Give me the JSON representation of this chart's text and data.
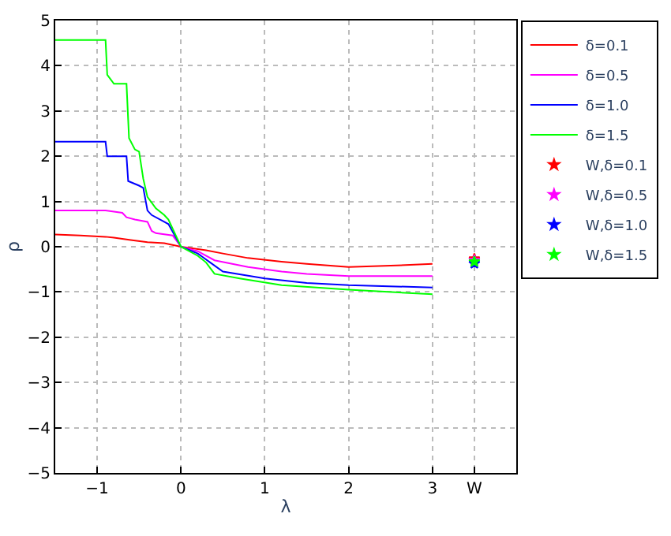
{
  "chart_data": {
    "type": "line",
    "xlabel": "λ",
    "ylabel": "ρ",
    "xlim": [
      -1.5,
      4
    ],
    "ylim": [
      -5,
      5
    ],
    "xticks": [
      -1,
      0,
      1,
      2,
      3,
      {
        "value": 3.5,
        "label": "W"
      }
    ],
    "yticks": [
      -5,
      -4,
      -3,
      -2,
      -1,
      0,
      1,
      2,
      3,
      4,
      5
    ],
    "grid": true,
    "legend": "top right",
    "line_style": "solid",
    "series": [
      {
        "name": "δ=0.1",
        "color": "#ff0000",
        "x": [
          -1.5,
          -1.2,
          -0.9,
          -0.8,
          -0.6,
          -0.4,
          -0.2,
          0,
          0.3,
          0.5,
          0.8,
          1.2,
          1.5,
          2,
          2.5,
          3
        ],
        "values": [
          0.27,
          0.25,
          0.22,
          0.2,
          0.15,
          0.1,
          0.08,
          0,
          -0.08,
          -0.15,
          -0.25,
          -0.33,
          -0.38,
          -0.45,
          -0.42,
          -0.38
        ]
      },
      {
        "name": "δ=0.5",
        "color": "#ff00ff",
        "x": [
          -1.5,
          -0.9,
          -0.7,
          -0.65,
          -0.55,
          -0.4,
          -0.35,
          -0.3,
          -0.1,
          0,
          0.2,
          0.4,
          0.8,
          1.2,
          1.5,
          2,
          3
        ],
        "values": [
          0.8,
          0.8,
          0.75,
          0.65,
          0.6,
          0.55,
          0.35,
          0.3,
          0.25,
          0,
          -0.1,
          -0.3,
          -0.45,
          -0.55,
          -0.6,
          -0.65,
          -0.65
        ]
      },
      {
        "name": "δ=1.0",
        "color": "#0000ff",
        "x": [
          -1.5,
          -0.9,
          -0.88,
          -0.65,
          -0.63,
          -0.5,
          -0.45,
          -0.4,
          -0.35,
          -0.2,
          -0.15,
          0,
          0.2,
          0.35,
          0.5,
          1,
          1.5,
          2,
          3
        ],
        "values": [
          2.32,
          2.32,
          2.0,
          2.0,
          1.45,
          1.35,
          1.3,
          0.8,
          0.7,
          0.55,
          0.5,
          0,
          -0.15,
          -0.35,
          -0.55,
          -0.7,
          -0.8,
          -0.85,
          -0.9
        ]
      },
      {
        "name": "δ=1.5",
        "color": "#00ff00",
        "x": [
          -1.5,
          -0.9,
          -0.88,
          -0.8,
          -0.65,
          -0.62,
          -0.55,
          -0.5,
          -0.45,
          -0.4,
          -0.3,
          -0.2,
          -0.15,
          0,
          0.2,
          0.3,
          0.4,
          0.7,
          1.2,
          2,
          3
        ],
        "values": [
          4.57,
          4.57,
          3.8,
          3.6,
          3.6,
          2.4,
          2.15,
          2.1,
          1.5,
          1.1,
          0.85,
          0.7,
          0.6,
          0,
          -0.2,
          -0.35,
          -0.6,
          -0.7,
          -0.85,
          -0.95,
          -1.05
        ]
      },
      {
        "name": "W,δ=0.1",
        "type": "scatter",
        "marker": "star",
        "color": "#ff0000",
        "x": [
          3.5
        ],
        "values": [
          -0.27
        ]
      },
      {
        "name": "W,δ=0.5",
        "type": "scatter",
        "marker": "star",
        "color": "#ff00ff",
        "x": [
          3.5
        ],
        "values": [
          -0.3
        ]
      },
      {
        "name": "W,δ=1.0",
        "type": "scatter",
        "marker": "star",
        "color": "#0000ff",
        "x": [
          3.5
        ],
        "values": [
          -0.37
        ]
      },
      {
        "name": "W,δ=1.5",
        "type": "scatter",
        "marker": "star",
        "color": "#00ff00",
        "x": [
          3.5
        ],
        "values": [
          -0.33
        ]
      }
    ]
  }
}
